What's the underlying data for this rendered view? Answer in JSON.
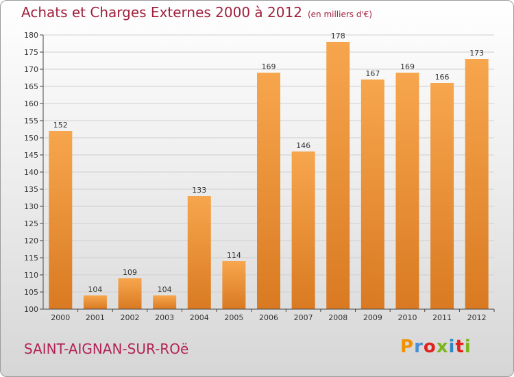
{
  "header": {
    "title": "Achats et Charges Externes 2000 à 2012",
    "unit": "(en milliers d'€)"
  },
  "footer": {
    "city": "SAINT-AIGNAN-SUR-ROë",
    "brand": "Proxiti",
    "brand_colors": [
      "#f29100",
      "#4b8fd4",
      "#e2211c",
      "#7ab51d",
      "#2f87c8",
      "#e2211c",
      "#7ab51d"
    ]
  },
  "colors": {
    "bar_light": "#f7a64e",
    "bar_dark": "#d97a22",
    "axis": "#444444",
    "grid": "#cfcfcf"
  },
  "chart_data": {
    "type": "bar",
    "title": "Achats et Charges Externes 2000 à 2012",
    "xlabel": "",
    "ylabel": "",
    "categories": [
      "2000",
      "2001",
      "2002",
      "2003",
      "2004",
      "2005",
      "2006",
      "2007",
      "2008",
      "2009",
      "2010",
      "2011",
      "2012"
    ],
    "values": [
      152,
      104,
      109,
      104,
      133,
      114,
      169,
      146,
      178,
      167,
      169,
      166,
      173
    ],
    "ylim": [
      100,
      180
    ],
    "yticks": [
      100,
      105,
      110,
      115,
      120,
      125,
      130,
      135,
      140,
      145,
      150,
      155,
      160,
      165,
      170,
      175,
      180
    ],
    "grid": true,
    "legend": "none",
    "data_labels": true
  }
}
